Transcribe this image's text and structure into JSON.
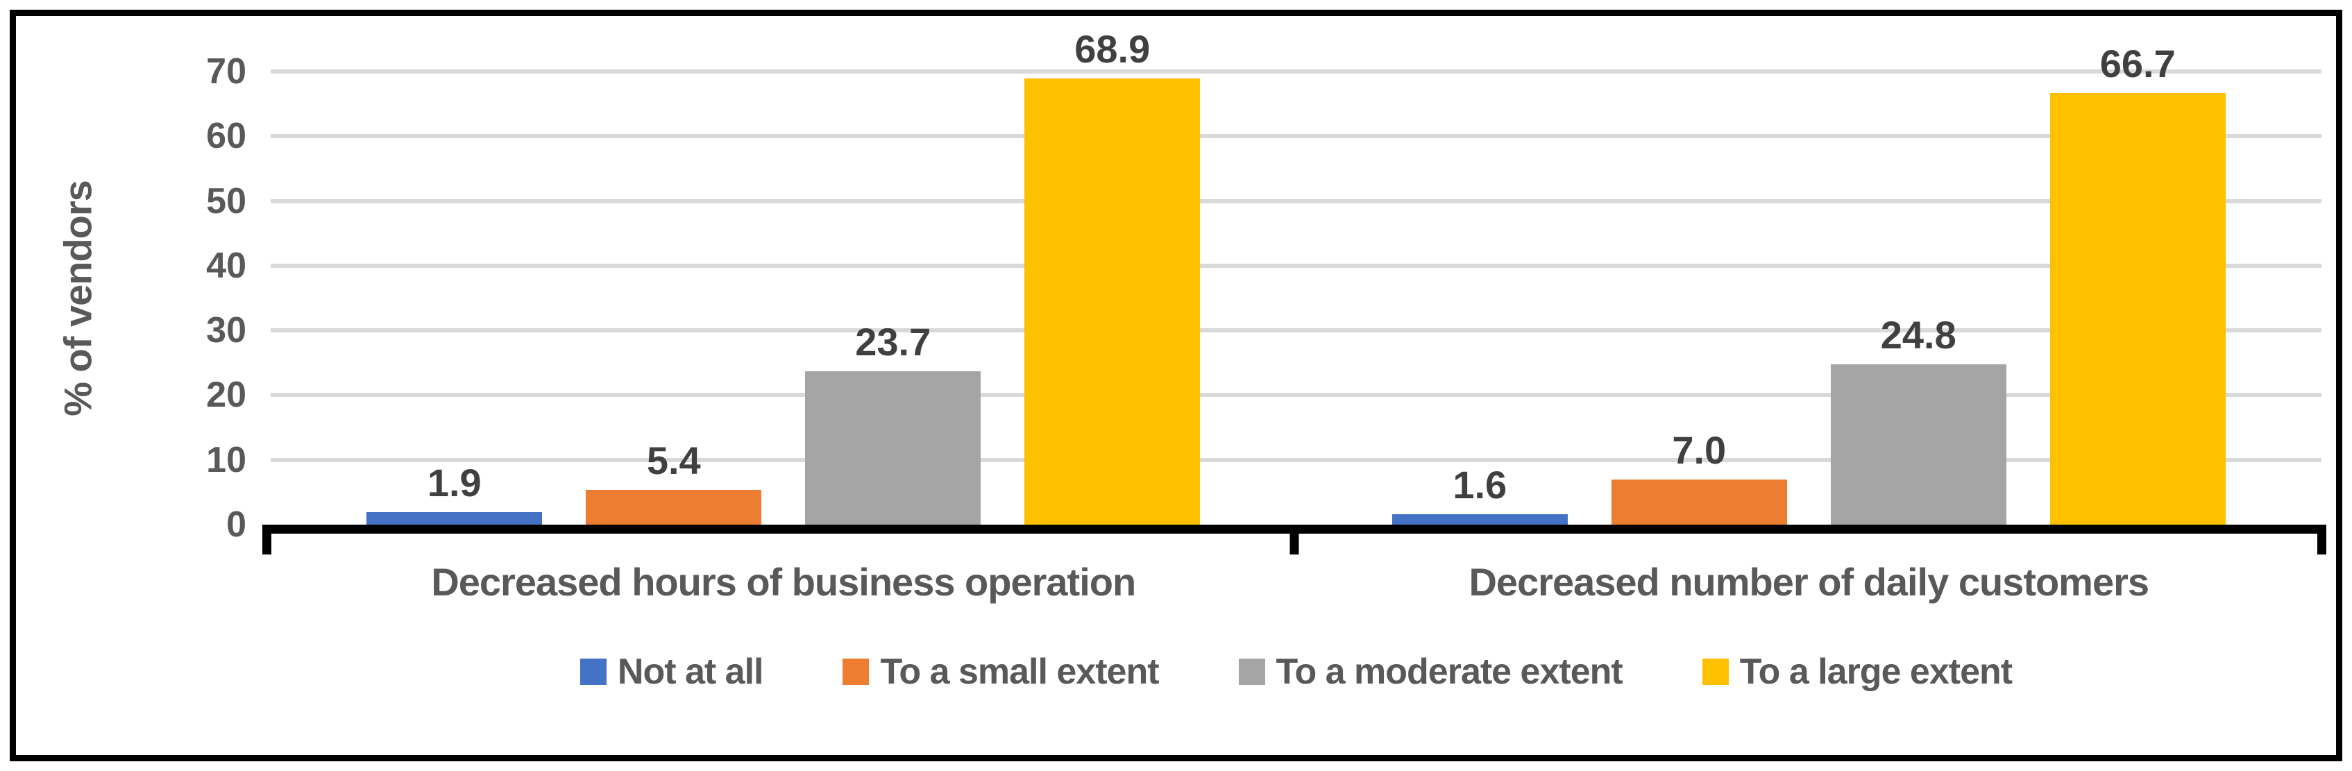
{
  "chart_data": {
    "type": "bar",
    "title": "",
    "xlabel": "",
    "ylabel": "% of vendors",
    "ylim": [
      0,
      70
    ],
    "yticks": [
      0,
      10,
      20,
      30,
      40,
      50,
      60,
      70
    ],
    "grid": "horizontal",
    "legend_position": "bottom-center",
    "categories": [
      "Decreased hours of business operation",
      "Decreased number of daily customers"
    ],
    "series": [
      {
        "name": "Not at all",
        "color": "#4472C4",
        "values": [
          1.9,
          1.6
        ]
      },
      {
        "name": "To a small extent",
        "color": "#ED7D31",
        "values": [
          5.4,
          7.0
        ]
      },
      {
        "name": "To a moderate extent",
        "color": "#A5A5A5",
        "values": [
          23.7,
          24.8
        ]
      },
      {
        "name": "To a large extent",
        "color": "#FFC000",
        "values": [
          68.9,
          66.7
        ]
      }
    ],
    "data_label_format": "one-decimal"
  },
  "style_colors": {
    "gridline": "#D9D9D9",
    "axis_line": "#000000",
    "frame_border": "#000000",
    "axis_text": "#595959",
    "data_label_text": "#404040"
  }
}
